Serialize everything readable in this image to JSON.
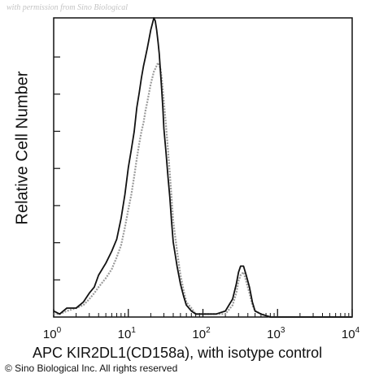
{
  "watermark": "with permission from Sino Biological",
  "copyright": "© Sino Biological Inc. All rights reserved",
  "chart_data": {
    "type": "line",
    "xlabel": "APC KIR2DL1(CD158a), with isotype control",
    "ylabel": "Relative Cell Number",
    "x_scale": "log",
    "xlim": [
      1,
      10000
    ],
    "ylim": [
      0,
      100
    ],
    "grid": false,
    "x_ticks": [
      {
        "base": "10",
        "exp": "0"
      },
      {
        "base": "10",
        "exp": "1"
      },
      {
        "base": "10",
        "exp": "2"
      },
      {
        "base": "10",
        "exp": "3"
      },
      {
        "base": "10",
        "exp": "4"
      }
    ],
    "series": [
      {
        "color": "#111111",
        "points": [
          [
            1.0,
            2
          ],
          [
            1.2,
            1
          ],
          [
            1.5,
            3
          ],
          [
            2.0,
            3
          ],
          [
            2.5,
            5
          ],
          [
            3.0,
            8
          ],
          [
            3.5,
            10
          ],
          [
            4.0,
            14
          ],
          [
            5.0,
            18
          ],
          [
            6.0,
            22
          ],
          [
            7.0,
            26
          ],
          [
            8.0,
            33
          ],
          [
            9.0,
            41
          ],
          [
            10,
            50
          ],
          [
            11,
            56
          ],
          [
            12,
            62
          ],
          [
            13,
            70
          ],
          [
            14,
            75
          ],
          [
            15,
            80
          ],
          [
            16,
            84
          ],
          [
            17,
            87
          ],
          [
            18,
            90
          ],
          [
            19,
            93
          ],
          [
            20,
            96
          ],
          [
            21,
            98
          ],
          [
            22,
            100
          ],
          [
            23,
            99
          ],
          [
            24,
            96
          ],
          [
            25,
            92
          ],
          [
            26,
            88
          ],
          [
            27,
            82
          ],
          [
            28,
            76
          ],
          [
            29,
            70
          ],
          [
            30,
            63
          ],
          [
            32,
            55
          ],
          [
            34,
            47
          ],
          [
            36,
            40
          ],
          [
            38,
            32
          ],
          [
            40,
            25
          ],
          [
            45,
            17
          ],
          [
            50,
            11
          ],
          [
            55,
            7
          ],
          [
            60,
            4
          ],
          [
            70,
            2
          ],
          [
            80,
            1
          ],
          [
            100,
            1
          ],
          [
            150,
            1
          ],
          [
            200,
            2
          ],
          [
            250,
            6
          ],
          [
            280,
            11
          ],
          [
            300,
            15
          ],
          [
            320,
            17
          ],
          [
            350,
            17
          ],
          [
            380,
            14
          ],
          [
            420,
            10
          ],
          [
            460,
            5
          ],
          [
            500,
            2
          ],
          [
            600,
            1
          ],
          [
            800,
            0
          ],
          [
            1000,
            0
          ],
          [
            10000,
            0
          ]
        ]
      },
      {
        "color": "#9a9a9a",
        "points": [
          [
            1.0,
            1
          ],
          [
            1.2,
            1
          ],
          [
            1.5,
            2
          ],
          [
            2.0,
            3
          ],
          [
            2.5,
            4
          ],
          [
            3.0,
            6
          ],
          [
            3.5,
            8
          ],
          [
            4.0,
            10
          ],
          [
            5.0,
            13
          ],
          [
            6.0,
            16
          ],
          [
            7.0,
            20
          ],
          [
            8.0,
            24
          ],
          [
            9.0,
            30
          ],
          [
            10,
            36
          ],
          [
            11,
            41
          ],
          [
            12,
            47
          ],
          [
            13,
            53
          ],
          [
            14,
            58
          ],
          [
            15,
            62
          ],
          [
            16,
            65
          ],
          [
            17,
            69
          ],
          [
            18,
            72
          ],
          [
            19,
            75
          ],
          [
            20,
            78
          ],
          [
            21,
            80
          ],
          [
            22,
            82
          ],
          [
            23,
            83
          ],
          [
            24,
            84
          ],
          [
            25,
            85
          ],
          [
            26,
            84
          ],
          [
            27,
            83
          ],
          [
            28,
            80
          ],
          [
            29,
            76
          ],
          [
            30,
            72
          ],
          [
            32,
            64
          ],
          [
            34,
            56
          ],
          [
            36,
            48
          ],
          [
            38,
            40
          ],
          [
            40,
            32
          ],
          [
            45,
            22
          ],
          [
            50,
            14
          ],
          [
            55,
            9
          ],
          [
            60,
            5
          ],
          [
            70,
            3
          ],
          [
            80,
            1
          ],
          [
            100,
            1
          ],
          [
            150,
            1
          ],
          [
            200,
            1
          ],
          [
            250,
            4
          ],
          [
            280,
            8
          ],
          [
            300,
            12
          ],
          [
            320,
            14
          ],
          [
            350,
            15
          ],
          [
            380,
            12
          ],
          [
            420,
            8
          ],
          [
            460,
            4
          ],
          [
            500,
            2
          ],
          [
            600,
            1
          ],
          [
            800,
            0
          ],
          [
            1000,
            0
          ],
          [
            10000,
            0
          ]
        ]
      }
    ]
  }
}
